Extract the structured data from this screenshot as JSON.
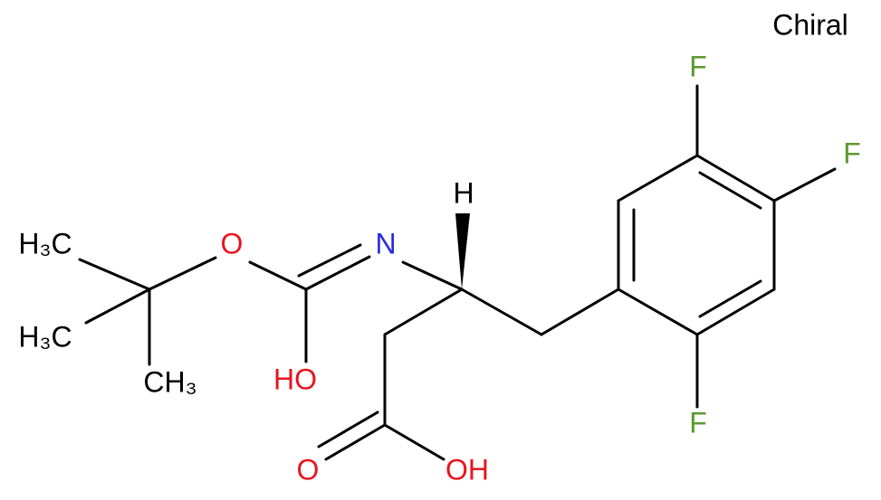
{
  "label": "Chiral",
  "atoms": [
    {
      "label": "F"
    },
    {
      "label": "F"
    },
    {
      "label": "F"
    },
    {
      "label": "H₃C"
    },
    {
      "label": "O"
    },
    {
      "label": "N"
    },
    {
      "label": "H₃C"
    },
    {
      "label": "HO"
    },
    {
      "label": "CH₃"
    },
    {
      "label": "H"
    },
    {
      "label": "O"
    },
    {
      "label": "OH"
    }
  ]
}
